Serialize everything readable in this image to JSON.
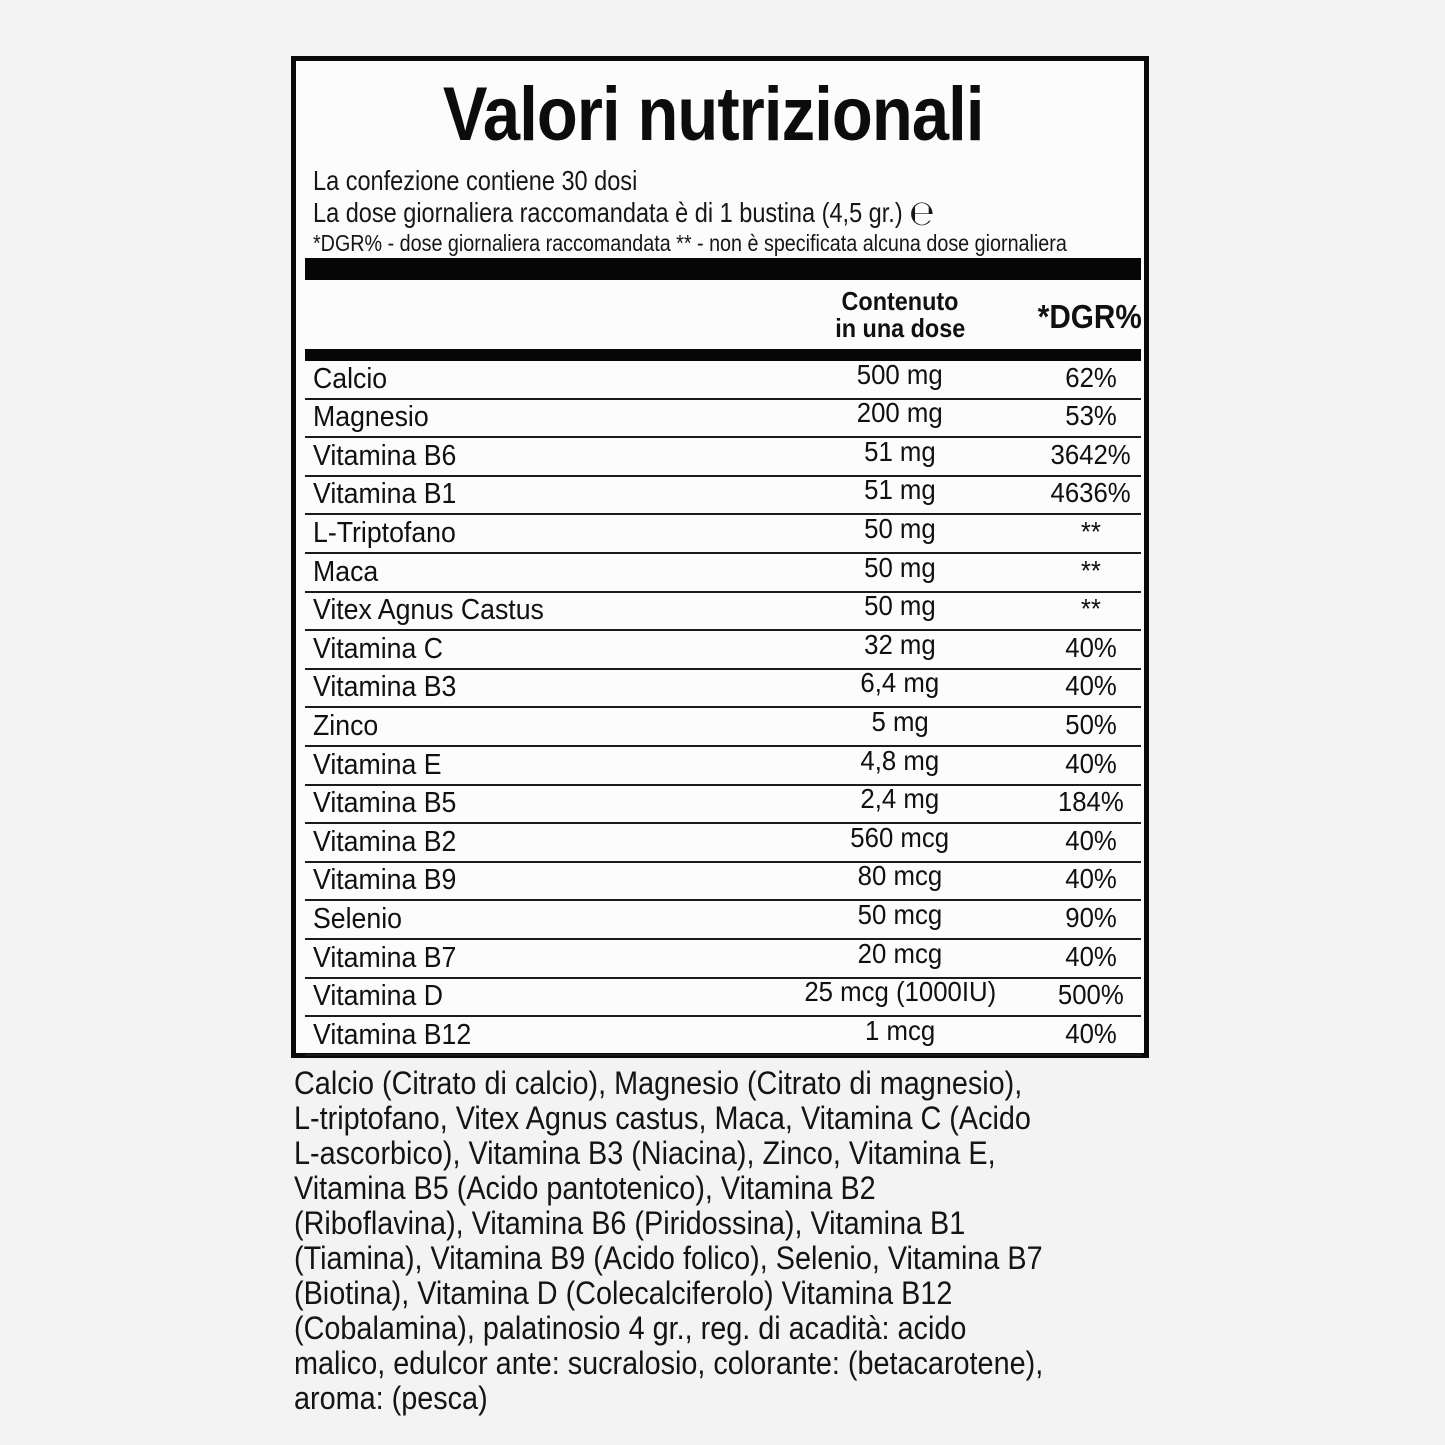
{
  "page": {
    "background_color": "#f3f3f3",
    "label_background_color": "#fcfcfc",
    "ink_color": "#0a0a0a"
  },
  "label": {
    "title": "Valori nutrizionali",
    "intro": {
      "line1": "La confezione contiene 30 dosi",
      "line2": "La dose giornaliera raccomandata è di 1 bustina (4,5 gr.)",
      "estimated_sign": "℮",
      "line3": "*DGR% - dose giornaliera raccomandata ** - non è specificata alcuna dose giornaliera"
    },
    "table": {
      "header": {
        "amount_line1": "Contenuto",
        "amount_line2": "in una dose",
        "dgr": "*DGR%"
      },
      "rows": [
        {
          "name": "Calcio",
          "amount": "500 mg",
          "dgr": "62%"
        },
        {
          "name": "Magnesio",
          "amount": "200 mg",
          "dgr": "53%"
        },
        {
          "name": "Vitamina B6",
          "amount": "51 mg",
          "dgr": "3642%"
        },
        {
          "name": "Vitamina B1",
          "amount": "51 mg",
          "dgr": "4636%"
        },
        {
          "name": "L-Triptofano",
          "amount": "50 mg",
          "dgr": "**"
        },
        {
          "name": "Maca",
          "amount": "50 mg",
          "dgr": "**"
        },
        {
          "name": "Vitex Agnus Castus",
          "amount": "50 mg",
          "dgr": "**"
        },
        {
          "name": "Vitamina C",
          "amount": "32 mg",
          "dgr": "40%"
        },
        {
          "name": "Vitamina B3",
          "amount": "6,4 mg",
          "dgr": "40%"
        },
        {
          "name": "Zinco",
          "amount": "5 mg",
          "dgr": "50%"
        },
        {
          "name": "Vitamina E",
          "amount": "4,8 mg",
          "dgr": "40%"
        },
        {
          "name": "Vitamina B5",
          "amount": "2,4 mg",
          "dgr": "184%"
        },
        {
          "name": "Vitamina B2",
          "amount": "560 mcg",
          "dgr": "40%"
        },
        {
          "name": "Vitamina B9",
          "amount": "80 mcg",
          "dgr": "40%"
        },
        {
          "name": "Selenio",
          "amount": "50 mcg",
          "dgr": "90%"
        },
        {
          "name": "Vitamina B7",
          "amount": "20 mcg",
          "dgr": "40%"
        },
        {
          "name": "Vitamina D",
          "amount": "25 mcg (1000IU)",
          "dgr": "500%"
        },
        {
          "name": "Vitamina B12",
          "amount": "1 mcg",
          "dgr": "40%"
        }
      ]
    },
    "ingredients_lines": [
      "Calcio (Citrato di calcio), Magnesio (Citrato di magnesio),",
      "L-triptofano, Vitex Agnus castus, Maca, Vitamina C (Acido",
      "L-ascorbico), Vitamina B3 (Niacina), Zinco, Vitamina E,",
      "Vitamina B5 (Acido pantotenico), Vitamina B2",
      "(Riboflavina), Vitamina B6 (Piridossina), Vitamina B1",
      "(Tiamina), Vitamina B9 (Acido folico), Selenio, Vitamina B7",
      "(Biotina), Vitamina D (Colecalciferolo) Vitamina B12",
      "(Cobalamina), palatinosio 4 gr., reg. di acadità: acido",
      "malico, edulcor ante: sucralosio, colorante: (betacarotene),",
      "aroma: (pesca)"
    ]
  }
}
